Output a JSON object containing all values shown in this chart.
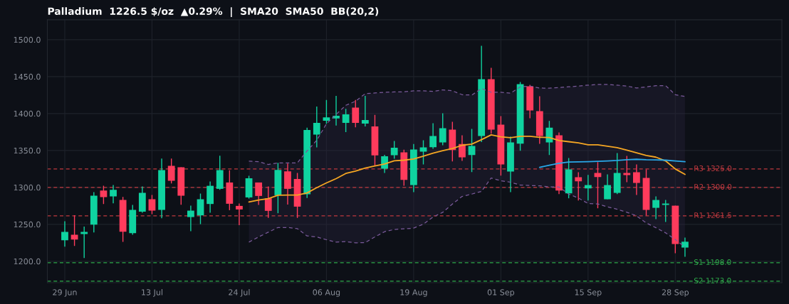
{
  "chart_data": {
    "type": "candlestick",
    "title": "Palladium  1226.5 $/oz  ▲0.29%  |  SMA20  SMA50  BB(20,2)",
    "categories": [
      "29 Jun",
      null,
      null,
      null,
      null,
      null,
      null,
      null,
      null,
      "13 Jul",
      null,
      null,
      null,
      null,
      null,
      null,
      null,
      null,
      "24 Jul",
      null,
      null,
      null,
      null,
      null,
      null,
      null,
      null,
      "06 Aug",
      null,
      null,
      null,
      null,
      null,
      null,
      null,
      null,
      "19 Aug",
      null,
      null,
      null,
      null,
      null,
      null,
      null,
      null,
      "01 Sep",
      null,
      null,
      null,
      null,
      null,
      null,
      null,
      null,
      "15 Sep",
      null,
      null,
      null,
      null,
      null,
      null,
      null,
      null,
      "28 Sep",
      null
    ],
    "ohlc": [
      [
        1228.5,
        1254.2,
        1219.9,
        1239.7
      ],
      [
        1235.9,
        1262.5,
        1220.8,
        1229.5
      ],
      [
        1236.9,
        1247.1,
        1204.5,
        1239.7
      ],
      [
        1249.7,
        1293.6,
        1239.1,
        1288.8
      ],
      [
        1295.8,
        1302.2,
        1277.6,
        1286.9
      ],
      [
        1287.8,
        1303.2,
        1278.5,
        1296.8
      ],
      [
        1283.0,
        1287.2,
        1226.3,
        1240.0
      ],
      [
        1238.1,
        1276.3,
        1235.9,
        1269.6
      ],
      [
        1267.3,
        1301.3,
        1265.7,
        1292.6
      ],
      [
        1284.0,
        1289.7,
        1263.8,
        1268.6
      ],
      [
        1269.6,
        1339.1,
        1258.3,
        1323.4
      ],
      [
        1329.2,
        1339.1,
        1305.4,
        1309.0
      ],
      [
        1327.2,
        1327.2,
        1276.6,
        1288.8
      ],
      [
        1259.9,
        1275.3,
        1240.7,
        1268.6
      ],
      [
        1262.2,
        1291.7,
        1250.3,
        1284.0
      ],
      [
        1277.6,
        1308.0,
        1265.7,
        1302.2
      ],
      [
        1298.1,
        1342.9,
        1296.8,
        1323.4
      ],
      [
        1306.7,
        1323.1,
        1269.2,
        1277.9
      ],
      [
        1275.0,
        1278.2,
        1249.0,
        1270.2
      ],
      [
        1286.5,
        1315.7,
        1284.9,
        1312.5
      ],
      [
        1306.7,
        1306.7,
        1276.3,
        1288.5
      ],
      [
        1285.3,
        1301.3,
        1258.7,
        1268.3
      ],
      [
        1289.4,
        1333.3,
        1265.1,
        1323.7
      ],
      [
        1321.8,
        1332.4,
        1276.9,
        1298.1
      ],
      [
        1311.5,
        1319.6,
        1258.7,
        1274.0
      ],
      [
        1290.7,
        1380.8,
        1285.6,
        1377.9
      ],
      [
        1371.5,
        1409.6,
        1354.2,
        1387.5
      ],
      [
        1390.4,
        1418.3,
        1386.2,
        1394.9
      ],
      [
        1393.3,
        1424.0,
        1383.7,
        1397.1
      ],
      [
        1387.5,
        1406.4,
        1375.0,
        1399.0
      ],
      [
        1408.0,
        1418.3,
        1381.4,
        1387.5
      ],
      [
        1386.5,
        1424.0,
        1382.7,
        1391.3
      ],
      [
        1382.7,
        1398.1,
        1329.5,
        1343.3
      ],
      [
        1325.3,
        1344.2,
        1319.6,
        1342.3
      ],
      [
        1343.6,
        1362.8,
        1338.8,
        1353.8
      ],
      [
        1347.4,
        1351.0,
        1302.2,
        1310.3
      ],
      [
        1303.2,
        1358.7,
        1293.6,
        1351.3
      ],
      [
        1348.4,
        1363.8,
        1331.1,
        1354.2
      ],
      [
        1354.5,
        1386.9,
        1352.2,
        1369.6
      ],
      [
        1360.9,
        1400.3,
        1357.1,
        1380.1
      ],
      [
        1378.2,
        1388.8,
        1335.3,
        1350.6
      ],
      [
        1358.7,
        1370.5,
        1335.9,
        1340.7
      ],
      [
        1343.9,
        1379.2,
        1320.8,
        1356.1
      ],
      [
        1369.6,
        1491.7,
        1361.5,
        1446.5
      ],
      [
        1446.5,
        1461.9,
        1372.8,
        1378.2
      ],
      [
        1384.9,
        1396.5,
        1316.0,
        1331.1
      ],
      [
        1321.5,
        1368.9,
        1293.6,
        1360.9
      ],
      [
        1359.3,
        1442.6,
        1349.7,
        1439.7
      ],
      [
        1436.9,
        1438.8,
        1393.6,
        1404.2
      ],
      [
        1403.2,
        1423.4,
        1359.0,
        1369.6
      ],
      [
        1361.0,
        1390.0,
        1344.0,
        1381.0
      ],
      [
        1370.5,
        1374.4,
        1291.0,
        1295.8
      ],
      [
        1292.0,
        1339.7,
        1285.3,
        1324.4
      ],
      [
        1313.8,
        1320.5,
        1282.4,
        1308.3
      ],
      [
        1298.7,
        1317.0,
        1282.4,
        1303.2
      ],
      [
        1319.6,
        1334.3,
        1271.8,
        1314.1
      ],
      [
        1284.0,
        1317.6,
        1284.0,
        1303.2
      ],
      [
        1292.6,
        1346.5,
        1291.0,
        1319.6
      ],
      [
        1319.6,
        1342.6,
        1307.1,
        1316.7
      ],
      [
        1320.5,
        1331.1,
        1289.7,
        1306.1
      ],
      [
        1312.8,
        1324.4,
        1261.9,
        1269.6
      ],
      [
        1272.4,
        1287.8,
        1257.1,
        1283.0
      ],
      [
        1276.3,
        1283.0,
        1253.2,
        1278.2
      ],
      [
        1275.3,
        1275.3,
        1210.9,
        1223.4
      ],
      [
        1218.6,
        1232.1,
        1206.1,
        1226.5
      ]
    ],
    "colors": [
      "#0fd3a0",
      "#ff3b5c",
      "#0fd3a0",
      "#0fd3a0",
      "#ff3b5c",
      "#0fd3a0",
      "#ff3b5c",
      "#0fd3a0",
      "#0fd3a0",
      "#ff3b5c",
      "#0fd3a0",
      "#ff3b5c",
      "#ff3b5c",
      "#0fd3a0",
      "#0fd3a0",
      "#0fd3a0",
      "#0fd3a0",
      "#ff3b5c",
      "#ff3b5c",
      "#0fd3a0",
      "#ff3b5c",
      "#ff3b5c",
      "#0fd3a0",
      "#ff3b5c",
      "#ff3b5c",
      "#0fd3a0",
      "#0fd3a0",
      "#0fd3a0",
      "#0fd3a0",
      "#0fd3a0",
      "#ff3b5c",
      "#0fd3a0",
      "#ff3b5c",
      "#0fd3a0",
      "#0fd3a0",
      "#ff3b5c",
      "#0fd3a0",
      "#0fd3a0",
      "#0fd3a0",
      "#0fd3a0",
      "#ff3b5c",
      "#ff3b5c",
      "#0fd3a0",
      "#0fd3a0",
      "#ff3b5c",
      "#ff3b5c",
      "#0fd3a0",
      "#0fd3a0",
      "#ff3b5c",
      "#ff3b5c",
      "#0fd3a0",
      "#ff3b5c",
      "#0fd3a0",
      "#ff3b5c",
      "#0fd3a0",
      "#ff3b5c",
      "#0fd3a0",
      "#0fd3a0",
      "#ff3b5c",
      "#ff3b5c",
      "#ff3b5c",
      "#0fd3a0",
      "#0fd3a0",
      "#ff3b5c",
      "#0fd3a0"
    ],
    "series": [
      {
        "type": "line",
        "color": "#f5a623",
        "values": [
          null,
          null,
          null,
          null,
          null,
          null,
          null,
          null,
          null,
          null,
          null,
          null,
          null,
          null,
          null,
          null,
          null,
          null,
          null,
          1280.4,
          1283.0,
          1284.9,
          1289.4,
          1289.7,
          1289.7,
          1292.6,
          1299.7,
          1306.1,
          1311.9,
          1318.9,
          1322.1,
          1326.3,
          1329.2,
          1331.7,
          1336.0,
          1336.9,
          1338.5,
          1342.3,
          1346.5,
          1349.7,
          1352.6,
          1357.1,
          1358.7,
          1364.7,
          1371.2,
          1368.6,
          1367.3,
          1369.2,
          1369.2,
          1367.9,
          1367.5,
          1363.5,
          1361.9,
          1360.3,
          1357.7,
          1357.7,
          1355.8,
          1353.8,
          1350.6,
          1346.8,
          1343.3,
          1341.0,
          1335.9,
          1325.0,
          1317.6
        ],
        "upper": [
          null,
          null,
          null,
          null,
          null,
          null,
          null,
          null,
          null,
          null,
          null,
          null,
          null,
          null,
          null,
          null,
          null,
          null,
          null,
          1335.6,
          1334.9,
          1331.1,
          1333.3,
          1333.3,
          1333.3,
          1349.4,
          1363.8,
          1386.2,
          1399.0,
          1411.2,
          1416.7,
          1426.9,
          1427.9,
          1428.8,
          1429.3,
          1429.5,
          1430.8,
          1430.8,
          1430.1,
          1432.1,
          1430.8,
          1425.6,
          1425.0,
          1434.0,
          1428.8,
          1428.8,
          1427.6,
          1436.2,
          1437.2,
          1434.6,
          1434.3,
          1435.3,
          1436.2,
          1437.2,
          1438.5,
          1439.4,
          1439.4,
          1438.5,
          1437.2,
          1434.6,
          1436.2,
          1437.8,
          1437.8,
          1425.6,
          1423.1
        ],
        "lower": [
          null,
          null,
          null,
          null,
          null,
          null,
          null,
          null,
          null,
          null,
          null,
          null,
          null,
          null,
          null,
          null,
          null,
          null,
          null,
          1226.0,
          1233.0,
          1239.4,
          1245.8,
          1245.8,
          1244.2,
          1234.3,
          1233.0,
          1229.2,
          1226.0,
          1226.6,
          1225.0,
          1225.3,
          1233.0,
          1240.1,
          1243.1,
          1243.9,
          1244.9,
          1250.3,
          1259.9,
          1266.3,
          1277.6,
          1287.8,
          1291.0,
          1294.6,
          1312.8,
          1309.0,
          1307.1,
          1303.2,
          1302.6,
          1302.2,
          1300.8,
          1300.6,
          1291.0,
          1285.6,
          1278.2,
          1277.6,
          1273.7,
          1270.5,
          1266.3,
          1261.5,
          1251.9,
          1245.5,
          1238.5,
          1229.5,
          1219.2
        ]
      },
      {
        "type": "line",
        "color": "#7a5a9a",
        "line_style": "dashed",
        "values": [
          null,
          null,
          null,
          null,
          null,
          null,
          null,
          null,
          null,
          null,
          null,
          null,
          null,
          null,
          null,
          null,
          null,
          null,
          null,
          1335.6,
          1334.9,
          1331.1,
          1333.3,
          1333.3,
          1333.3,
          1349.4,
          1363.8,
          1386.2,
          1399.0,
          1411.2,
          1416.7,
          1426.9,
          1427.9,
          1428.8,
          1429.3,
          1429.5,
          1430.8,
          1430.8,
          1430.1,
          1432.1,
          1430.8,
          1425.6,
          1425.0,
          1434.0,
          1428.8,
          1428.8,
          1427.6,
          1436.2,
          1437.2,
          1434.6,
          1434.3,
          1435.3,
          1436.2,
          1437.2,
          1438.5,
          1439.4,
          1439.4,
          1438.5,
          1437.2,
          1434.6,
          1436.2,
          1437.8,
          1437.8,
          1425.6,
          1423.1
        ]
      },
      {
        "type": "line",
        "color": "#7a5a9a",
        "line_style": "dashed",
        "values": [
          null,
          null,
          null,
          null,
          null,
          null,
          null,
          null,
          null,
          null,
          null,
          null,
          null,
          null,
          null,
          null,
          null,
          null,
          null,
          1226.0,
          1233.0,
          1239.4,
          1245.8,
          1245.8,
          1244.2,
          1234.3,
          1233.0,
          1229.2,
          1226.0,
          1226.6,
          1225.0,
          1225.3,
          1233.0,
          1240.1,
          1243.1,
          1243.9,
          1244.9,
          1250.3,
          1259.9,
          1266.3,
          1277.6,
          1287.8,
          1291.0,
          1294.6,
          1312.8,
          1309.0,
          1307.1,
          1303.2,
          1302.6,
          1302.2,
          1300.8,
          1300.6,
          1291.0,
          1285.6,
          1278.2,
          1277.6,
          1273.7,
          1270.5,
          1266.3,
          1261.5,
          1251.9,
          1245.5,
          1238.5,
          1229.5,
          1219.2
        ]
      },
      {
        "type": "line",
        "color": "#29a8e8",
        "values": [
          null,
          null,
          null,
          null,
          null,
          null,
          null,
          null,
          null,
          null,
          null,
          null,
          null,
          null,
          null,
          null,
          null,
          null,
          null,
          null,
          null,
          null,
          null,
          null,
          null,
          null,
          null,
          null,
          null,
          null,
          null,
          null,
          null,
          null,
          null,
          null,
          null,
          null,
          null,
          null,
          null,
          null,
          null,
          null,
          null,
          null,
          null,
          null,
          null,
          1327.2,
          1330.1,
          1332.7,
          1334.3,
          1334.6,
          1334.9,
          1335.3,
          1335.9,
          1336.5,
          1337.5,
          1338.1,
          1337.5,
          1337.2,
          1336.9,
          1335.9,
          1334.9
        ]
      }
    ],
    "ref_lines": [
      {
        "axis": "y",
        "value": 1325,
        "label": "R3 1325.0",
        "color": "#c0393f",
        "line_style": "dashed"
      },
      {
        "axis": "y",
        "value": 1300,
        "label": "R2 1300.0",
        "color": "#c0393f",
        "line_style": "dashed"
      },
      {
        "axis": "y",
        "value": 1261.5,
        "label": "R1 1261.5",
        "color": "#c0393f",
        "line_style": "dashed"
      },
      {
        "axis": "y",
        "value": 1198,
        "label": "S1 1198.0",
        "color": "#2ea84a",
        "line_style": "dashed"
      },
      {
        "axis": "y",
        "value": 1173,
        "label": "S2 1173.0",
        "color": "#2ea84a",
        "line_style": "dashed"
      }
    ],
    "ylim": [
      1171,
      1527
    ],
    "yticks": [
      {
        "value": 1200,
        "label": "1200.0"
      },
      {
        "value": 1250,
        "label": "1250.0"
      },
      {
        "value": 1300,
        "label": "1300.0"
      },
      {
        "value": 1350,
        "label": "1350.0"
      },
      {
        "value": 1400,
        "label": "1400.0"
      },
      {
        "value": 1450,
        "label": "1450.0"
      },
      {
        "value": 1500,
        "label": "1500.0"
      }
    ],
    "grid": true,
    "legend": false
  }
}
